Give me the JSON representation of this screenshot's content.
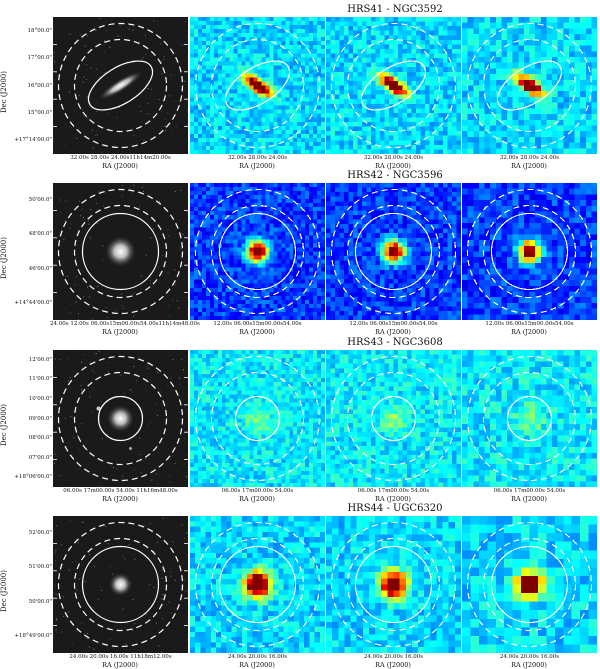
{
  "figure": {
    "rows": [
      {
        "title": "HRS41 - NGC3592",
        "ylabel": "Dec (J2000)",
        "yticks": [
          "18°00.0\"",
          "17°00.0\"",
          "16°00.0\"",
          "15°00.0\"",
          "+17°14'00.0\""
        ],
        "xticks_optical": "32.00s   28.00s   24.00s11h14m20.00s",
        "xticks_ir": "32.00s   28.00s   24.00s",
        "xlabel": "RA (J2000)",
        "source": "edge-on"
      },
      {
        "title": "HRS42 - NGC3596",
        "ylabel": "Dec (J2000)",
        "yticks": [
          "50'00.0\"",
          "48'00.0\"",
          "46'00.0\"",
          "+14°44'00.0\""
        ],
        "xticks_optical": "24.00s        12.00s   06.00s15m00.00s54.00s11h14m48.00s",
        "xticks_ir": "12.00s   06.00s15m00.00s54.00s",
        "xlabel": "RA (J2000)",
        "source": "compact"
      },
      {
        "title": "HRS43 - NGC3608",
        "ylabel": "Dec (J2000)",
        "yticks": [
          "12'00.0\"",
          "11'00.0\"",
          "10'00.0\"",
          "09'00.0\"",
          "08'00.0\"",
          "07'00.0\"",
          "+18°06'00.0\""
        ],
        "xticks_optical": "06.00s 17m00.00s 54.00s 11h16m48.00s",
        "xticks_ir": "06.00s 17m00.00s 54.00s",
        "xlabel": "RA (J2000)",
        "source": "faint"
      },
      {
        "title": "HRS44 - UGC6320",
        "ylabel": "Dec (J2000)",
        "yticks": [
          "52'00.0\"",
          "51'00.0\"",
          "50'00.0\"",
          "+18°49'00.0\""
        ],
        "xticks_optical": "24.00s     20.00s   16.00s 11h18m12.00s",
        "xticks_ir": "24.00s        20.00s   16.00s",
        "xlabel": "RA (J2000)",
        "source": "blocky"
      }
    ]
  }
}
